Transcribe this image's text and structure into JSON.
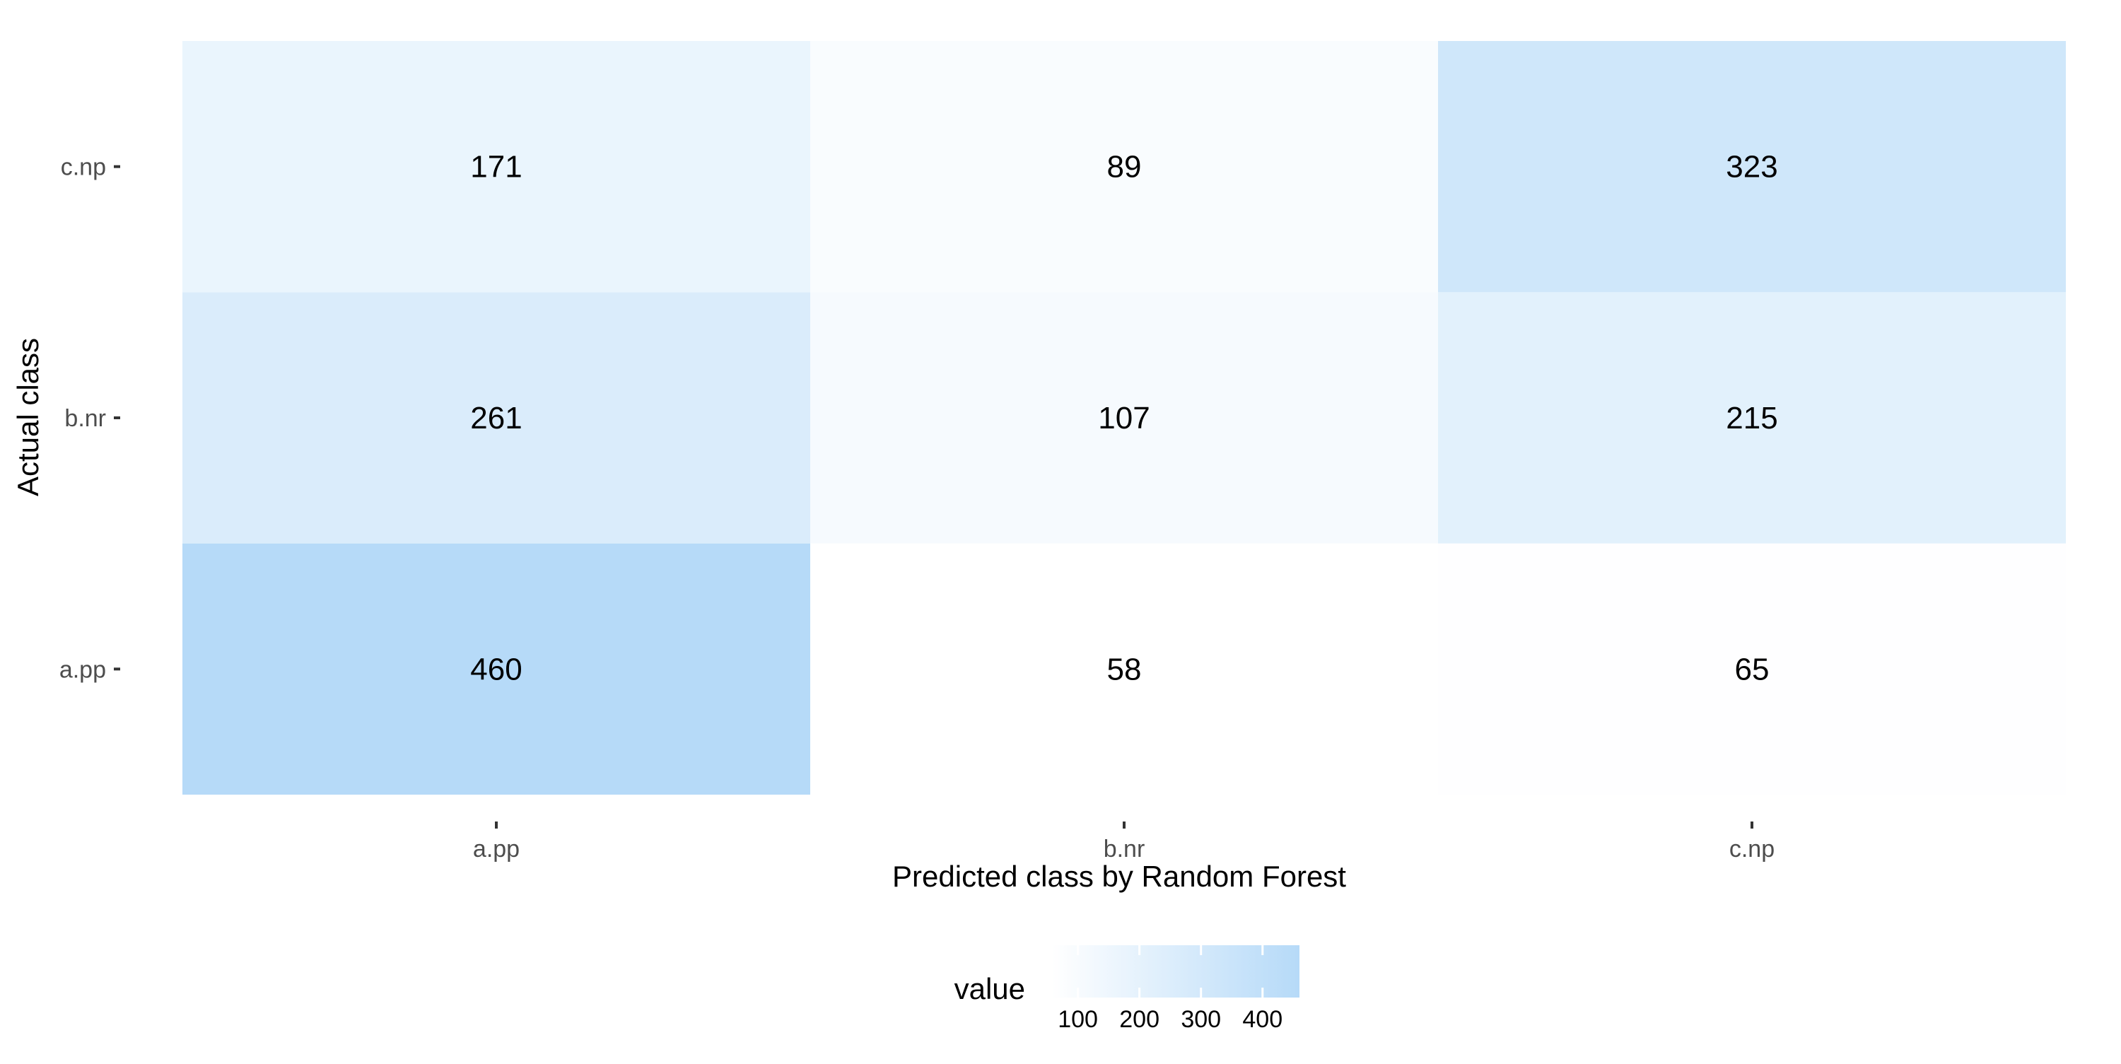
{
  "chart_data": {
    "type": "heatmap",
    "xlabel": "Predicted class by Random Forest",
    "ylabel": "Actual class",
    "x_categories": [
      "a.pp",
      "b.nr",
      "c.np"
    ],
    "y_categories": [
      "a.pp",
      "b.nr",
      "c.np"
    ],
    "values": [
      [
        460,
        58,
        65
      ],
      [
        261,
        107,
        215
      ],
      [
        171,
        89,
        323
      ]
    ],
    "legend": {
      "title": "value",
      "ticks": [
        100,
        200,
        300,
        400
      ],
      "range": [
        58,
        460
      ],
      "low_color": "#ffffff",
      "high_color": "#b6daf8",
      "placement": "bottom"
    },
    "grid": false
  }
}
